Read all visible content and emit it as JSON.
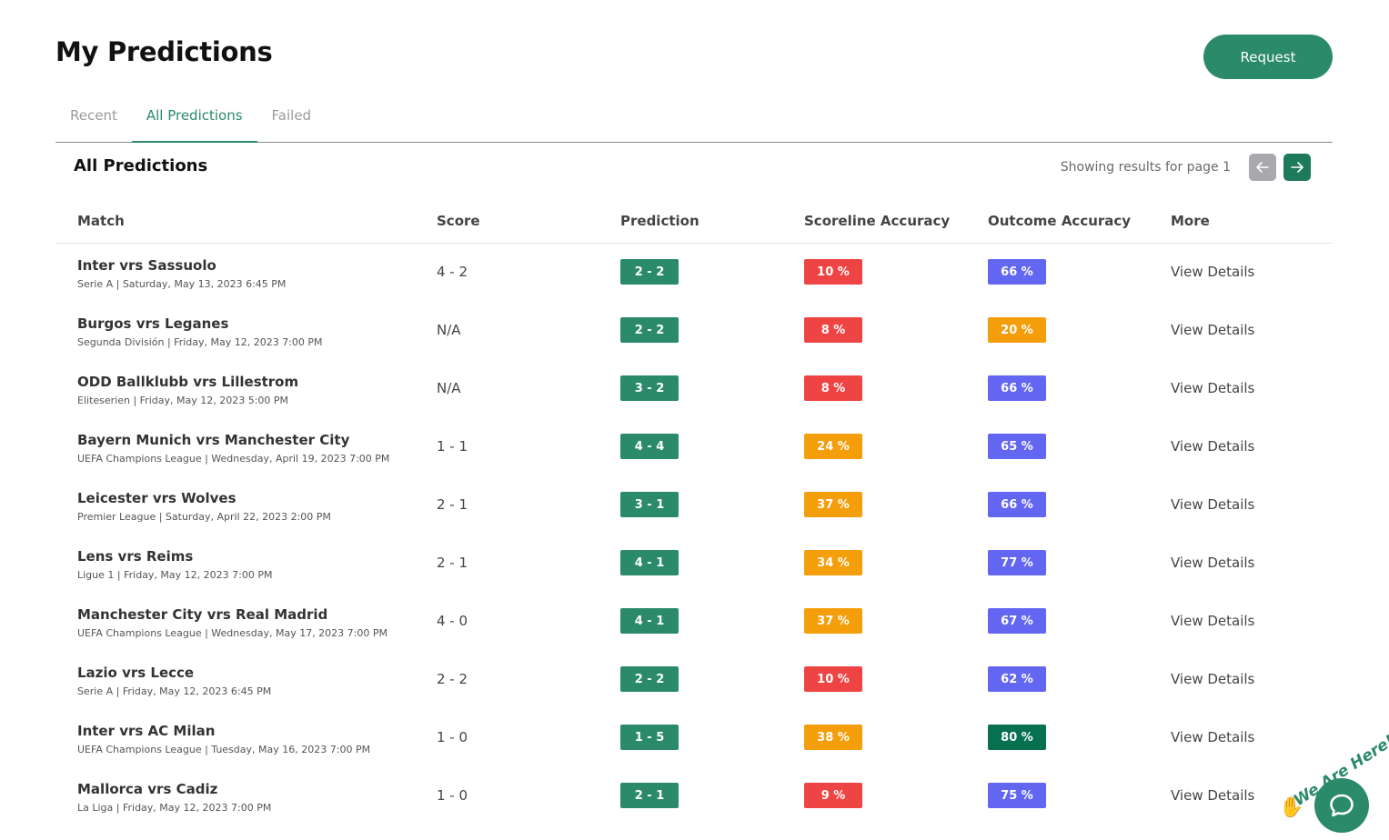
{
  "header": {
    "title": "My Predictions",
    "request_label": "Request"
  },
  "tabs": [
    {
      "label": "Recent",
      "active": false
    },
    {
      "label": "All Predictions",
      "active": true
    },
    {
      "label": "Failed",
      "active": false
    }
  ],
  "section": {
    "title": "All Predictions",
    "pager_text": "Showing results for page 1",
    "prev_icon": "arrow-left-icon",
    "next_icon": "arrow-right-icon"
  },
  "columns": [
    "Match",
    "Score",
    "Prediction",
    "Scoreline Accuracy",
    "Outcome Accuracy",
    "More"
  ],
  "colors": {
    "brand": "#2a8a6a",
    "red": "#ef4444",
    "orange": "#f59e0b",
    "purple": "#6366f1",
    "dark_green": "#06704f"
  },
  "rows": [
    {
      "match": "Inter vrs Sassuolo",
      "meta": "Serie A | Saturday, May 13, 2023 6:45 PM",
      "score": "4 - 2",
      "prediction": "2 - 2",
      "scoreline": "10 %",
      "scoreline_color": "red",
      "outcome": "66 %",
      "outcome_color": "purple",
      "more": "View Details"
    },
    {
      "match": "Burgos vrs Leganes",
      "meta": "Segunda División | Friday, May 12, 2023 7:00 PM",
      "score": "N/A",
      "prediction": "2 - 2",
      "scoreline": "8 %",
      "scoreline_color": "red",
      "outcome": "20 %",
      "outcome_color": "orange",
      "more": "View Details"
    },
    {
      "match": "ODD Ballklubb vrs Lillestrom",
      "meta": "Eliteserien | Friday, May 12, 2023 5:00 PM",
      "score": "N/A",
      "prediction": "3 - 2",
      "scoreline": "8 %",
      "scoreline_color": "red",
      "outcome": "66 %",
      "outcome_color": "purple",
      "more": "View Details"
    },
    {
      "match": "Bayern Munich vrs Manchester City",
      "meta": "UEFA Champions League | Wednesday, April 19, 2023 7:00 PM",
      "score": "1 - 1",
      "prediction": "4 - 4",
      "scoreline": "24 %",
      "scoreline_color": "orange",
      "outcome": "65 %",
      "outcome_color": "purple",
      "more": "View Details"
    },
    {
      "match": "Leicester vrs Wolves",
      "meta": "Premier League | Saturday, April 22, 2023 2:00 PM",
      "score": "2 - 1",
      "prediction": "3 - 1",
      "scoreline": "37 %",
      "scoreline_color": "orange",
      "outcome": "66 %",
      "outcome_color": "purple",
      "more": "View Details"
    },
    {
      "match": "Lens vrs Reims",
      "meta": "Ligue 1 | Friday, May 12, 2023 7:00 PM",
      "score": "2 - 1",
      "prediction": "4 - 1",
      "scoreline": "34 %",
      "scoreline_color": "orange",
      "outcome": "77 %",
      "outcome_color": "purple",
      "more": "View Details"
    },
    {
      "match": "Manchester City vrs Real Madrid",
      "meta": "UEFA Champions League | Wednesday, May 17, 2023 7:00 PM",
      "score": "4 - 0",
      "prediction": "4 - 1",
      "scoreline": "37 %",
      "scoreline_color": "orange",
      "outcome": "67 %",
      "outcome_color": "purple",
      "more": "View Details"
    },
    {
      "match": "Lazio vrs Lecce",
      "meta": "Serie A | Friday, May 12, 2023 6:45 PM",
      "score": "2 - 2",
      "prediction": "2 - 2",
      "scoreline": "10 %",
      "scoreline_color": "red",
      "outcome": "62 %",
      "outcome_color": "purple",
      "more": "View Details"
    },
    {
      "match": "Inter vrs AC Milan",
      "meta": "UEFA Champions League | Tuesday, May 16, 2023 7:00 PM",
      "score": "1 - 0",
      "prediction": "1 - 5",
      "scoreline": "38 %",
      "scoreline_color": "orange",
      "outcome": "80 %",
      "outcome_color": "dark_green",
      "more": "View Details"
    },
    {
      "match": "Mallorca vrs Cadiz",
      "meta": "La Liga | Friday, May 12, 2023 7:00 PM",
      "score": "1 - 0",
      "prediction": "2 - 1",
      "scoreline": "9 %",
      "scoreline_color": "red",
      "outcome": "75 %",
      "outcome_color": "purple",
      "more": "View Details"
    }
  ],
  "chat": {
    "label": "We Are Here!",
    "icon": "chat-bubble-icon",
    "wave_icon": "waving-hand-icon"
  }
}
